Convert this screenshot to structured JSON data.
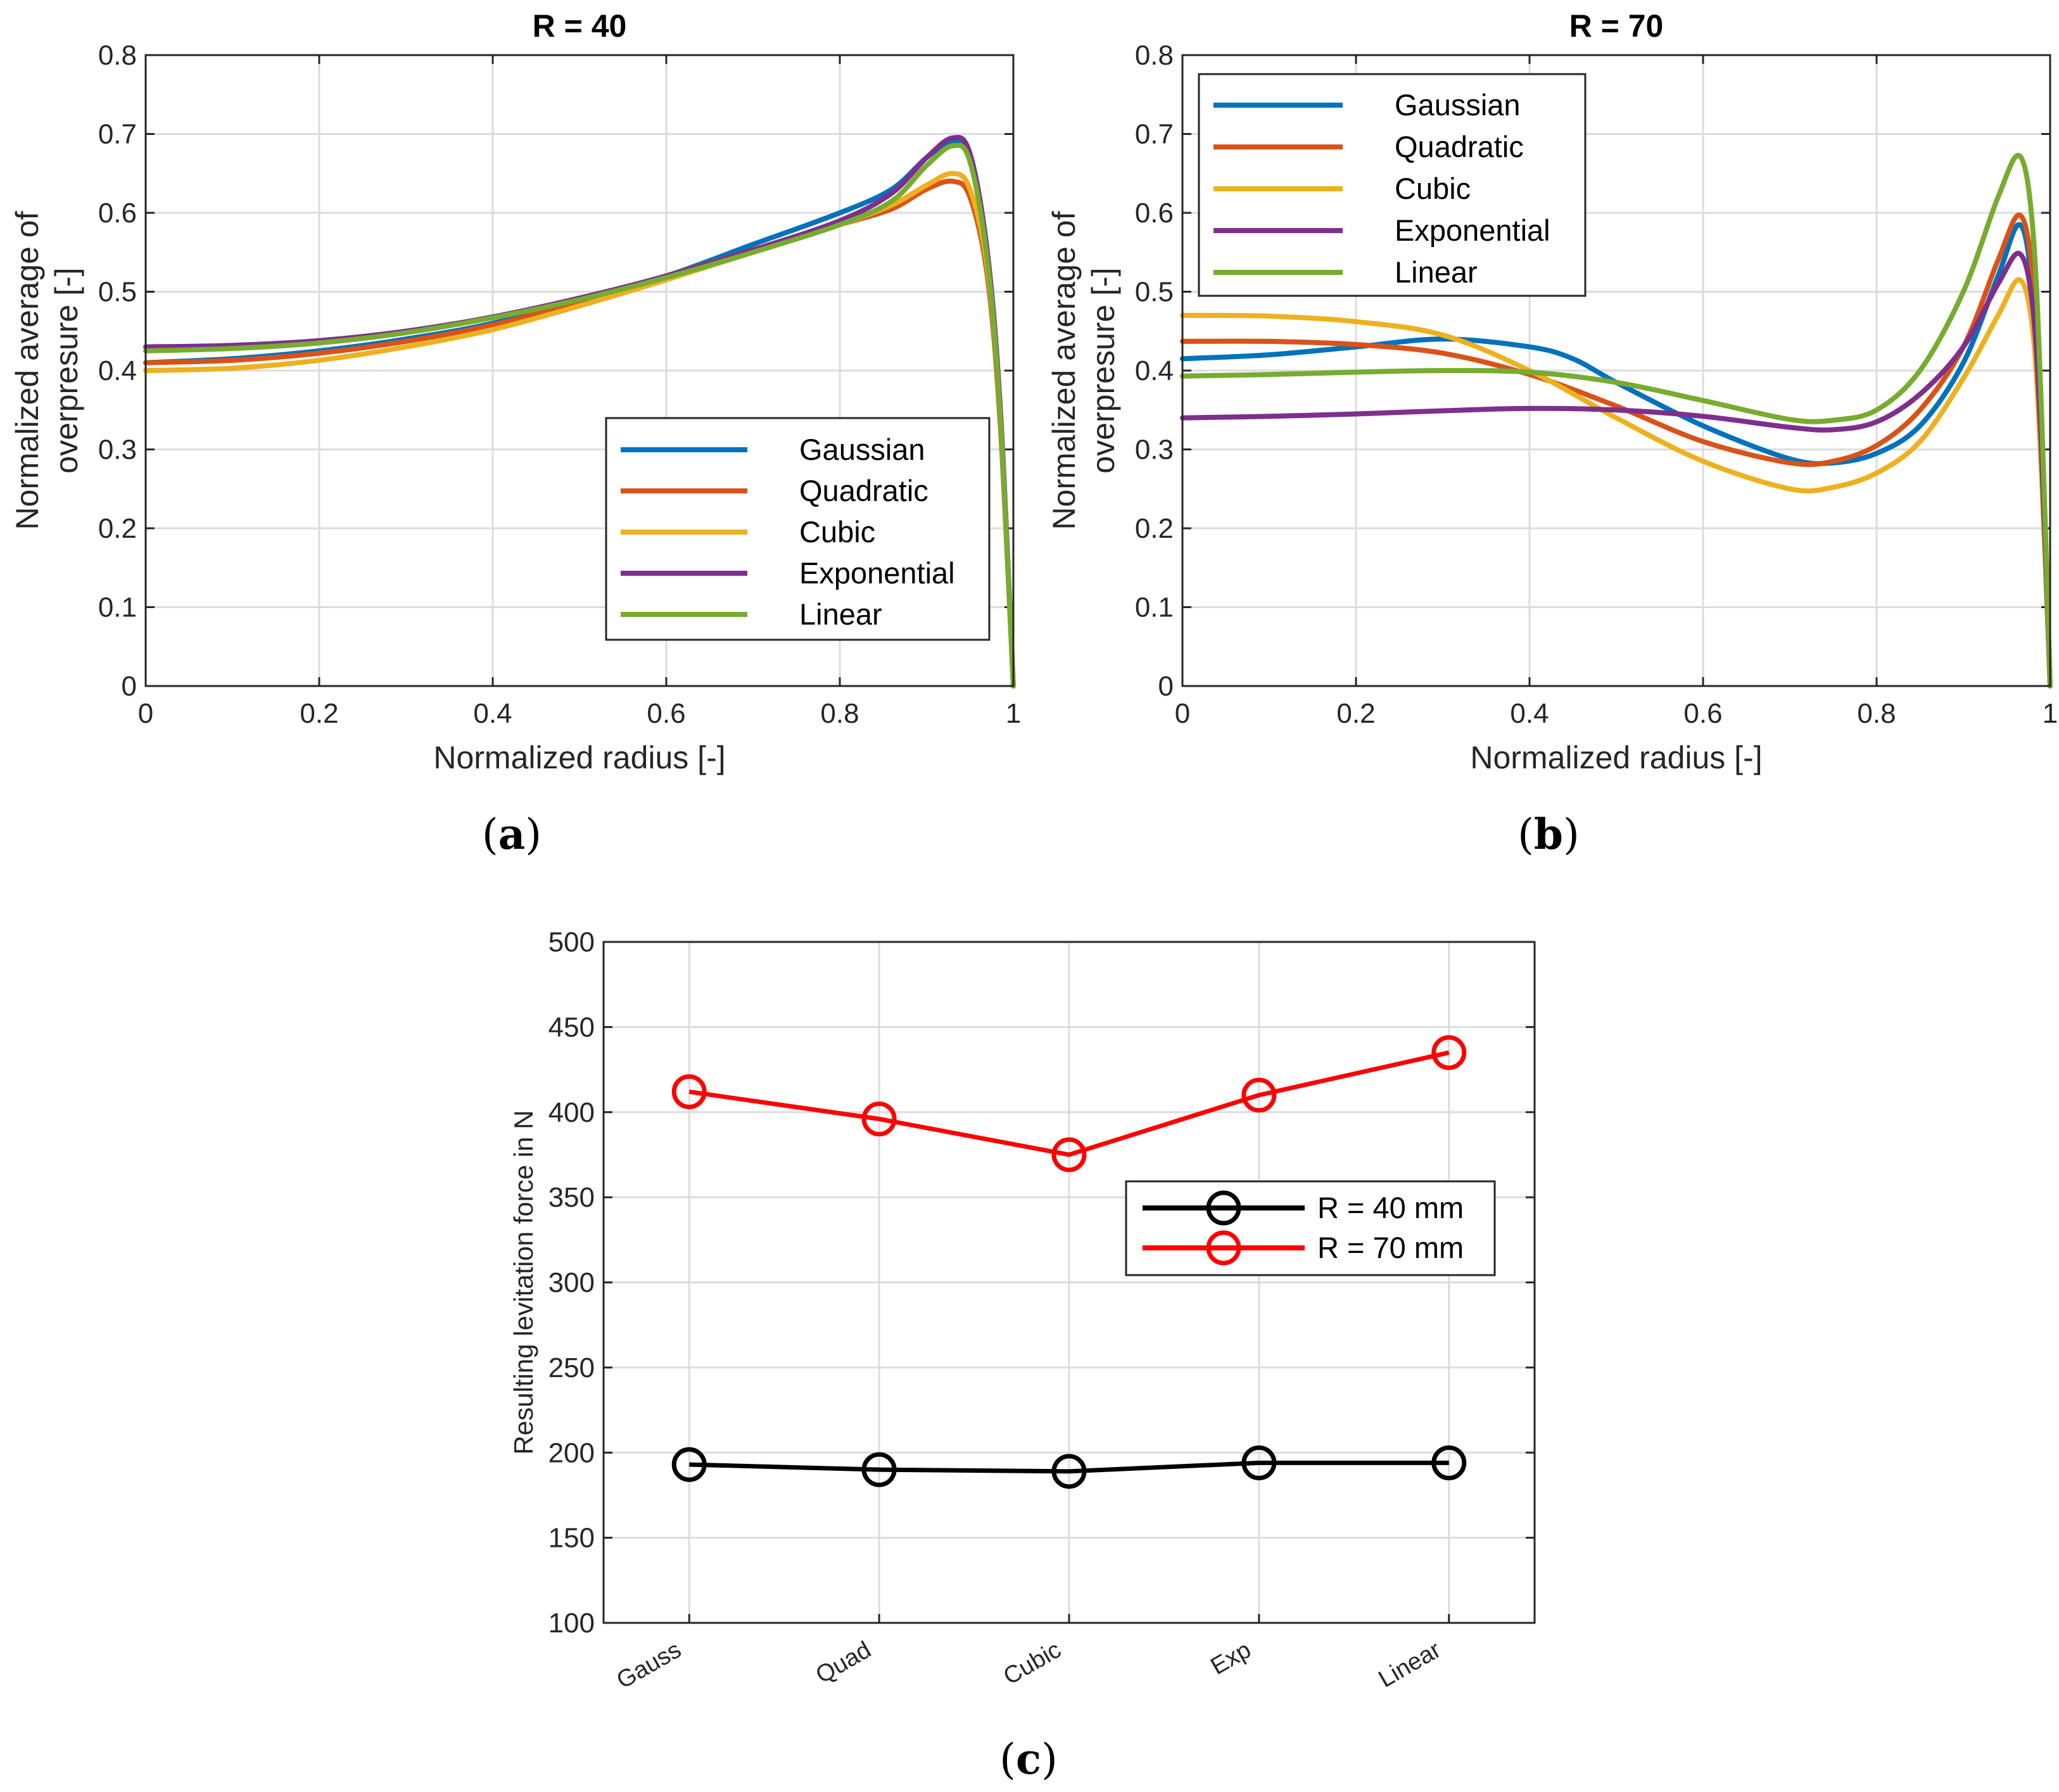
{
  "chart_data": [
    {
      "panel": "a",
      "caption": "a",
      "type": "line",
      "title": "R = 40",
      "xlabel": "Normalized radius [-]",
      "ylabel": [
        "Normalized average of",
        "overpresure [-]"
      ],
      "xlim": [
        0,
        1
      ],
      "ylim": [
        0,
        0.8
      ],
      "xticks": [
        "0",
        "0.2",
        "0.4",
        "0.6",
        "0.8",
        "1"
      ],
      "yticks": [
        "0",
        "0.1",
        "0.2",
        "0.3",
        "0.4",
        "0.5",
        "0.6",
        "0.7",
        "0.8"
      ],
      "grid": true,
      "legend_position": "bottom-right",
      "series": [
        {
          "name": "Gaussian",
          "color": "#0072bd",
          "x": [
            0,
            0.1,
            0.2,
            0.3,
            0.4,
            0.5,
            0.6,
            0.7,
            0.8,
            0.86,
            0.9,
            0.93,
            0.95,
            0.97,
            0.985,
            1.0
          ],
          "y": [
            0.41,
            0.415,
            0.425,
            0.44,
            0.46,
            0.49,
            0.52,
            0.56,
            0.6,
            0.63,
            0.67,
            0.69,
            0.675,
            0.55,
            0.35,
            0.0
          ]
        },
        {
          "name": "Quadratic",
          "color": "#d95319",
          "x": [
            0,
            0.1,
            0.2,
            0.3,
            0.4,
            0.5,
            0.6,
            0.7,
            0.8,
            0.86,
            0.9,
            0.93,
            0.95,
            0.97,
            0.985,
            1.0
          ],
          "y": [
            0.41,
            0.413,
            0.422,
            0.437,
            0.458,
            0.487,
            0.52,
            0.553,
            0.585,
            0.605,
            0.63,
            0.64,
            0.62,
            0.52,
            0.33,
            0.0
          ]
        },
        {
          "name": "Cubic",
          "color": "#edb120",
          "x": [
            0,
            0.1,
            0.2,
            0.3,
            0.4,
            0.5,
            0.6,
            0.7,
            0.8,
            0.86,
            0.9,
            0.93,
            0.95,
            0.97,
            0.985,
            1.0
          ],
          "y": [
            0.4,
            0.403,
            0.413,
            0.43,
            0.452,
            0.482,
            0.515,
            0.55,
            0.585,
            0.61,
            0.635,
            0.65,
            0.63,
            0.53,
            0.34,
            0.0
          ]
        },
        {
          "name": "Exponential",
          "color": "#7e2f8e",
          "x": [
            0,
            0.1,
            0.2,
            0.3,
            0.4,
            0.5,
            0.6,
            0.7,
            0.8,
            0.86,
            0.9,
            0.93,
            0.95,
            0.97,
            0.985,
            1.0
          ],
          "y": [
            0.43,
            0.432,
            0.438,
            0.45,
            0.468,
            0.492,
            0.52,
            0.553,
            0.59,
            0.625,
            0.67,
            0.695,
            0.675,
            0.55,
            0.35,
            0.0
          ]
        },
        {
          "name": "Linear",
          "color": "#77ac30",
          "x": [
            0,
            0.1,
            0.2,
            0.3,
            0.4,
            0.5,
            0.6,
            0.7,
            0.8,
            0.86,
            0.9,
            0.93,
            0.95,
            0.97,
            0.985,
            1.0
          ],
          "y": [
            0.425,
            0.428,
            0.435,
            0.448,
            0.467,
            0.49,
            0.518,
            0.55,
            0.585,
            0.615,
            0.66,
            0.685,
            0.665,
            0.54,
            0.34,
            0.0
          ]
        }
      ]
    },
    {
      "panel": "b",
      "caption": "b",
      "type": "line",
      "title": "R = 70",
      "xlabel": "Normalized radius [-]",
      "ylabel": [
        "Normalized average of",
        "overpresure [-]"
      ],
      "xlim": [
        0,
        1
      ],
      "ylim": [
        0,
        0.8
      ],
      "xticks": [
        "0",
        "0.2",
        "0.4",
        "0.6",
        "0.8",
        "1"
      ],
      "yticks": [
        "0",
        "0.1",
        "0.2",
        "0.3",
        "0.4",
        "0.5",
        "0.6",
        "0.7",
        "0.8"
      ],
      "grid": true,
      "legend_position": "top-left",
      "series": [
        {
          "name": "Gaussian",
          "color": "#0072bd",
          "x": [
            0,
            0.1,
            0.2,
            0.3,
            0.4,
            0.45,
            0.5,
            0.6,
            0.7,
            0.75,
            0.8,
            0.85,
            0.9,
            0.94,
            0.965,
            0.98,
            0.99,
            1.0
          ],
          "y": [
            0.415,
            0.42,
            0.43,
            0.44,
            0.43,
            0.415,
            0.385,
            0.33,
            0.288,
            0.283,
            0.295,
            0.33,
            0.41,
            0.52,
            0.585,
            0.5,
            0.3,
            0.0
          ]
        },
        {
          "name": "Quadratic",
          "color": "#d95319",
          "x": [
            0,
            0.1,
            0.2,
            0.3,
            0.4,
            0.5,
            0.6,
            0.7,
            0.75,
            0.8,
            0.85,
            0.9,
            0.94,
            0.965,
            0.98,
            0.99,
            1.0
          ],
          "y": [
            0.437,
            0.437,
            0.433,
            0.422,
            0.395,
            0.355,
            0.31,
            0.283,
            0.285,
            0.305,
            0.35,
            0.43,
            0.54,
            0.597,
            0.52,
            0.32,
            0.0
          ]
        },
        {
          "name": "Cubic",
          "color": "#edb120",
          "x": [
            0,
            0.1,
            0.2,
            0.3,
            0.4,
            0.5,
            0.6,
            0.7,
            0.75,
            0.8,
            0.85,
            0.9,
            0.94,
            0.965,
            0.98,
            0.99,
            1.0
          ],
          "y": [
            0.47,
            0.469,
            0.462,
            0.445,
            0.4,
            0.34,
            0.285,
            0.25,
            0.252,
            0.27,
            0.31,
            0.39,
            0.47,
            0.515,
            0.45,
            0.27,
            0.0
          ]
        },
        {
          "name": "Exponential",
          "color": "#7e2f8e",
          "x": [
            0,
            0.1,
            0.2,
            0.3,
            0.4,
            0.5,
            0.6,
            0.7,
            0.75,
            0.8,
            0.85,
            0.9,
            0.94,
            0.965,
            0.98,
            0.99,
            1.0
          ],
          "y": [
            0.34,
            0.342,
            0.345,
            0.349,
            0.352,
            0.35,
            0.342,
            0.328,
            0.325,
            0.335,
            0.37,
            0.43,
            0.51,
            0.548,
            0.48,
            0.3,
            0.0
          ]
        },
        {
          "name": "Linear",
          "color": "#77ac30",
          "x": [
            0,
            0.1,
            0.2,
            0.3,
            0.4,
            0.5,
            0.6,
            0.7,
            0.75,
            0.8,
            0.85,
            0.9,
            0.94,
            0.965,
            0.98,
            0.99,
            1.0
          ],
          "y": [
            0.393,
            0.395,
            0.398,
            0.4,
            0.398,
            0.385,
            0.362,
            0.338,
            0.337,
            0.35,
            0.4,
            0.5,
            0.62,
            0.672,
            0.58,
            0.35,
            0.0
          ]
        }
      ]
    },
    {
      "panel": "c",
      "caption": "c",
      "type": "line",
      "markers": "circle",
      "ylabel": "Resulting levitation force in N",
      "categories": [
        "Gauss",
        "Quad",
        "Cubic",
        "Exp",
        "Linear"
      ],
      "ylim": [
        100,
        500
      ],
      "yticks": [
        "100",
        "150",
        "200",
        "250",
        "300",
        "350",
        "400",
        "450",
        "500"
      ],
      "grid": true,
      "legend_position": "center-right",
      "series": [
        {
          "name": "R = 40 mm",
          "color": "#000000",
          "values": [
            193,
            190,
            189,
            194,
            194
          ]
        },
        {
          "name": "R = 70 mm",
          "color": "#ff0000",
          "values": [
            412,
            396,
            375,
            410,
            435
          ]
        }
      ]
    }
  ]
}
